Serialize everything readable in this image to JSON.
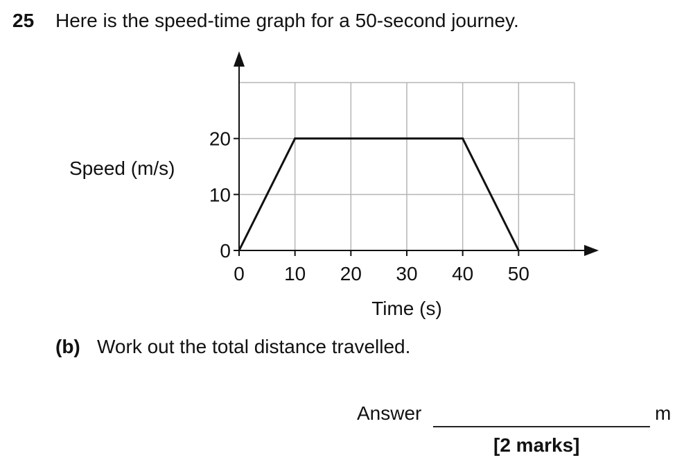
{
  "question": {
    "number": "25",
    "text": "Here is the speed-time graph for a 50-second journey."
  },
  "chart_data": {
    "type": "line",
    "xlabel": "Time (s)",
    "ylabel": "Speed (m/s)",
    "xlim": [
      0,
      60
    ],
    "ylim": [
      0,
      30
    ],
    "x_ticks": [
      0,
      10,
      20,
      30,
      40,
      50
    ],
    "y_ticks": [
      0,
      10,
      20
    ],
    "grid": true,
    "series": [
      {
        "x": [
          0,
          10,
          40,
          50
        ],
        "y": [
          0,
          20,
          20,
          0
        ]
      }
    ]
  },
  "part": {
    "label": "(b)",
    "text": "Work out the total distance travelled."
  },
  "answer": {
    "label": "Answer",
    "unit": "m",
    "marks": "[2 marks]"
  }
}
